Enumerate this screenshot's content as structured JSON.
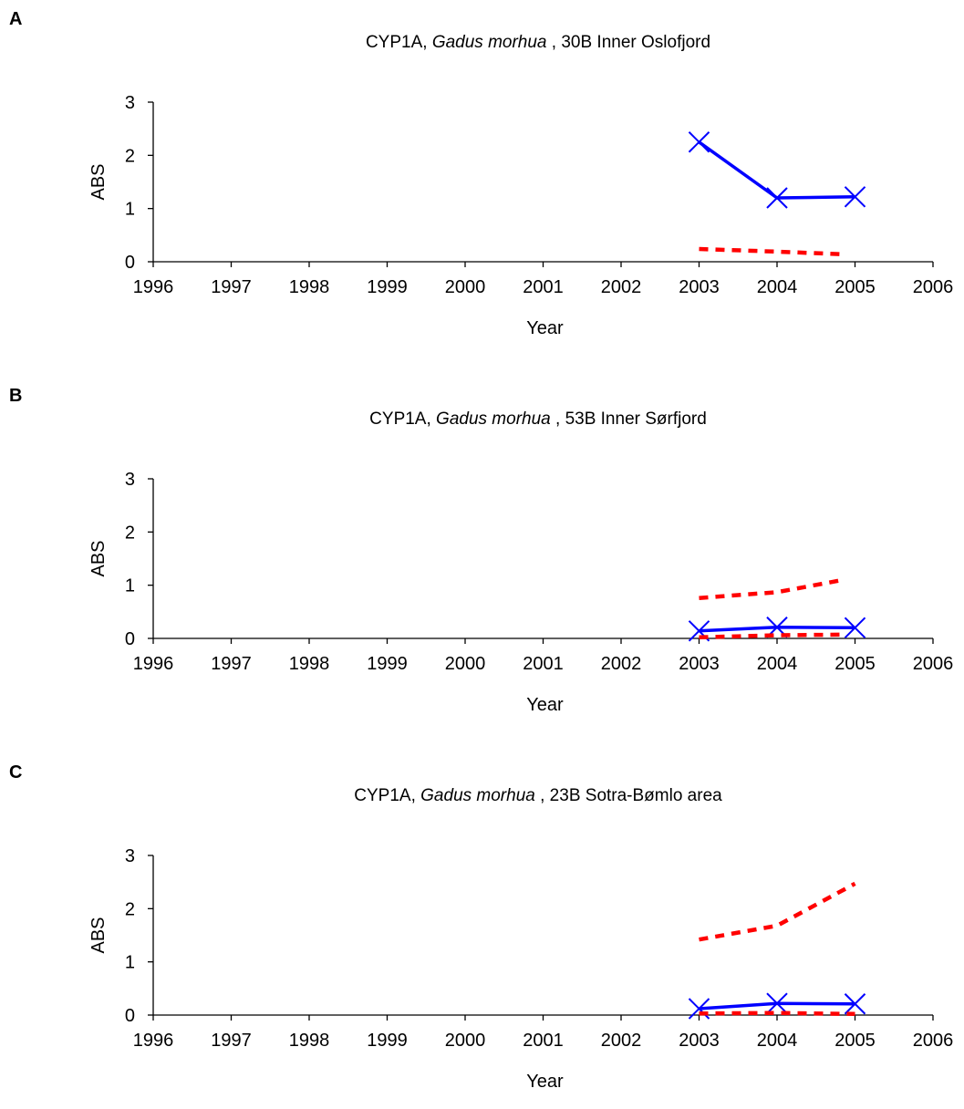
{
  "chart_data": [
    {
      "type": "line",
      "panel_label": "A",
      "title_prefix": "CYP1A, ",
      "title_species": "Gadus morhua",
      "title_suffix": " , 30B Inner Oslofjord",
      "xlabel": "Year",
      "ylabel": "ABS",
      "xlim": [
        1996,
        2006
      ],
      "ylim": [
        0,
        3
      ],
      "x_ticks": [
        1996,
        1997,
        1998,
        1999,
        2000,
        2001,
        2002,
        2003,
        2004,
        2005,
        2006
      ],
      "y_ticks": [
        0,
        1,
        2,
        3
      ],
      "grid": false,
      "series": [
        {
          "style": "solid-x-markers",
          "color": "#0000ff",
          "x": [
            2003,
            2004,
            2005
          ],
          "y": [
            2.25,
            1.2,
            1.22
          ]
        },
        {
          "style": "dashed",
          "color": "#ff0000",
          "x": [
            2003,
            2004,
            2004.85
          ],
          "y": [
            0.24,
            0.19,
            0.14
          ]
        }
      ]
    },
    {
      "type": "line",
      "panel_label": "B",
      "title_prefix": "CYP1A, ",
      "title_species": "Gadus morhua",
      "title_suffix": " , 53B Inner Sørfjord",
      "xlabel": "Year",
      "ylabel": "ABS",
      "xlim": [
        1996,
        2006
      ],
      "ylim": [
        0,
        3
      ],
      "x_ticks": [
        1996,
        1997,
        1998,
        1999,
        2000,
        2001,
        2002,
        2003,
        2004,
        2005,
        2006
      ],
      "y_ticks": [
        0,
        1,
        2,
        3
      ],
      "grid": false,
      "series": [
        {
          "style": "solid-x-markers",
          "color": "#0000ff",
          "x": [
            2003,
            2004,
            2005
          ],
          "y": [
            0.14,
            0.21,
            0.2
          ]
        },
        {
          "style": "dashed",
          "color": "#ff0000",
          "x": [
            2003,
            2004,
            2004.85
          ],
          "y": [
            0.76,
            0.87,
            1.1
          ]
        },
        {
          "style": "dashed",
          "color": "#ff0000",
          "x": [
            2003,
            2004,
            2004.85
          ],
          "y": [
            0.02,
            0.06,
            0.07
          ]
        }
      ]
    },
    {
      "type": "line",
      "panel_label": "C",
      "title_prefix": "CYP1A, ",
      "title_species": "Gadus morhua",
      "title_suffix": " , 23B Sotra-Bømlo area",
      "xlabel": "Year",
      "ylabel": "ABS",
      "xlim": [
        1996,
        2006
      ],
      "ylim": [
        0,
        3
      ],
      "x_ticks": [
        1996,
        1997,
        1998,
        1999,
        2000,
        2001,
        2002,
        2003,
        2004,
        2005,
        2006
      ],
      "y_ticks": [
        0,
        1,
        2,
        3
      ],
      "grid": false,
      "series": [
        {
          "style": "solid-x-markers",
          "color": "#0000ff",
          "x": [
            2003,
            2004,
            2005
          ],
          "y": [
            0.12,
            0.22,
            0.21
          ]
        },
        {
          "style": "dashed",
          "color": "#ff0000",
          "x": [
            2003,
            2004,
            2005
          ],
          "y": [
            1.42,
            1.68,
            2.47
          ]
        },
        {
          "style": "dashed",
          "color": "#ff0000",
          "x": [
            2003,
            2004,
            2005
          ],
          "y": [
            0.03,
            0.04,
            0.02
          ]
        }
      ]
    }
  ]
}
